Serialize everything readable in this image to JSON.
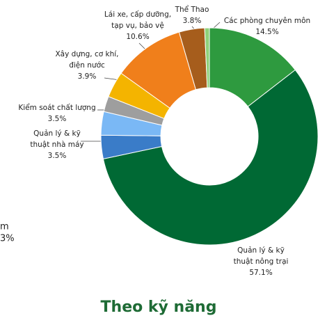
{
  "chart_data": {
    "type": "donut",
    "title": "Theo kỹ năng",
    "labels": [
      [
        "Các phòng chuyên môn"
      ],
      [
        "Quản lý & kỹ",
        "thuật nông trại"
      ],
      [
        "Quản lý & kỹ",
        "thuật nhà máy"
      ],
      [
        "Kiểm soát chất lượng"
      ],
      null,
      [
        "Xây dựng, cơ khí,",
        "điện nước"
      ],
      [
        "Lái xe, cấp dưỡng,",
        "tạp vụ, bảo vệ"
      ],
      [
        "Thể Thao"
      ],
      null
    ],
    "values": [
      14.5,
      57.1,
      3.5,
      3.5,
      2.3,
      3.9,
      10.6,
      3.8,
      0.7
    ],
    "value_labels": [
      "14.5%",
      "57.1%",
      "3.5%",
      "3.5%",
      null,
      "3.9%",
      "10.6%",
      "3.8%",
      null
    ],
    "colors": [
      "#2e9a3f",
      "#006934",
      "#3a7cc8",
      "#7ab8f5",
      "#9e9e9e",
      "#f4b400",
      "#f07f1b",
      "#a65d1c",
      "#8fd17a"
    ],
    "annotations": [
      "m",
      "3%"
    ]
  }
}
